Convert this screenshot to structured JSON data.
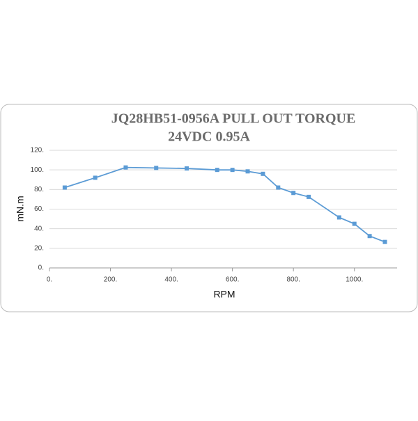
{
  "chart_data": {
    "type": "line",
    "title": [
      "JQ28HB51-0956A PULL OUT TORQUE",
      "24VDC  0.95A"
    ],
    "x_label": "RPM",
    "y_label": "mN.m",
    "x": [
      50,
      150,
      250,
      350,
      450,
      550,
      600,
      650,
      700,
      750,
      800,
      850,
      950,
      1000,
      1050,
      1100
    ],
    "series": [
      {
        "color": "#5b9bd5",
        "values": [
          82,
          92,
          102.5,
          102,
          101.5,
          100,
          100,
          98.5,
          96,
          82,
          76.5,
          72.5,
          51.5,
          45,
          32.5,
          26.5
        ]
      }
    ],
    "xlim": [
      0,
      1140
    ],
    "ylim": [
      0,
      120
    ],
    "xticks": [
      {
        "value": 0,
        "label": "0."
      },
      {
        "value": 200,
        "label": "200."
      },
      {
        "value": 400,
        "label": "400."
      },
      {
        "value": 600,
        "label": "600."
      },
      {
        "value": 800,
        "label": "800."
      },
      {
        "value": 1000,
        "label": "1000."
      }
    ],
    "yticks": [
      {
        "value": 0,
        "label": "0."
      },
      {
        "value": 20,
        "label": "20."
      },
      {
        "value": 40,
        "label": "40."
      },
      {
        "value": 60,
        "label": "60."
      },
      {
        "value": 80,
        "label": "80."
      },
      {
        "value": 100,
        "label": "100."
      },
      {
        "value": 120,
        "label": "120."
      }
    ],
    "grid": true
  }
}
